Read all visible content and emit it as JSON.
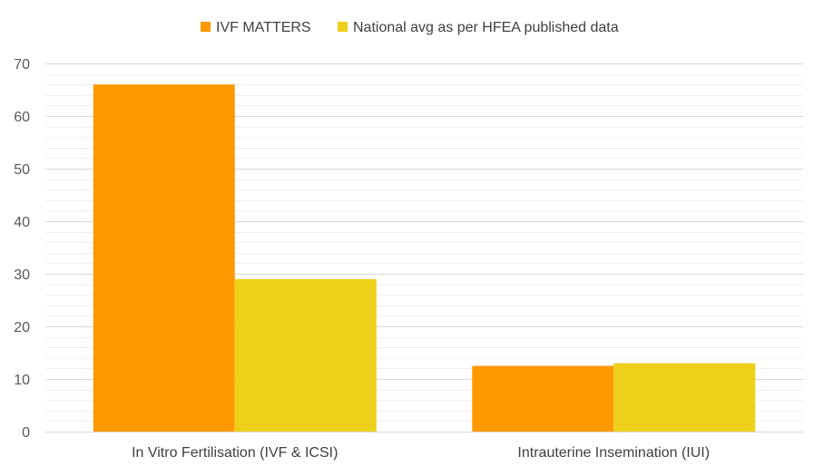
{
  "chart_data": {
    "type": "bar",
    "categories": [
      "In Vitro Fertilisation (IVF & ICSI)",
      "Intrauterine Insemination (IUI)"
    ],
    "series": [
      {
        "name": "IVF MATTERS",
        "values": [
          66,
          12.5
        ],
        "color": "#ff9900"
      },
      {
        "name": "National avg as per HFEA published data",
        "values": [
          29,
          13
        ],
        "color": "#edd01a"
      }
    ],
    "title": "",
    "xlabel": "",
    "ylabel": "",
    "ylim": [
      0,
      70
    ],
    "yticks": [
      0,
      10,
      20,
      30,
      40,
      50,
      60,
      70
    ],
    "minor_tick_step": 2,
    "grid": true,
    "legend_position": "top-center"
  }
}
